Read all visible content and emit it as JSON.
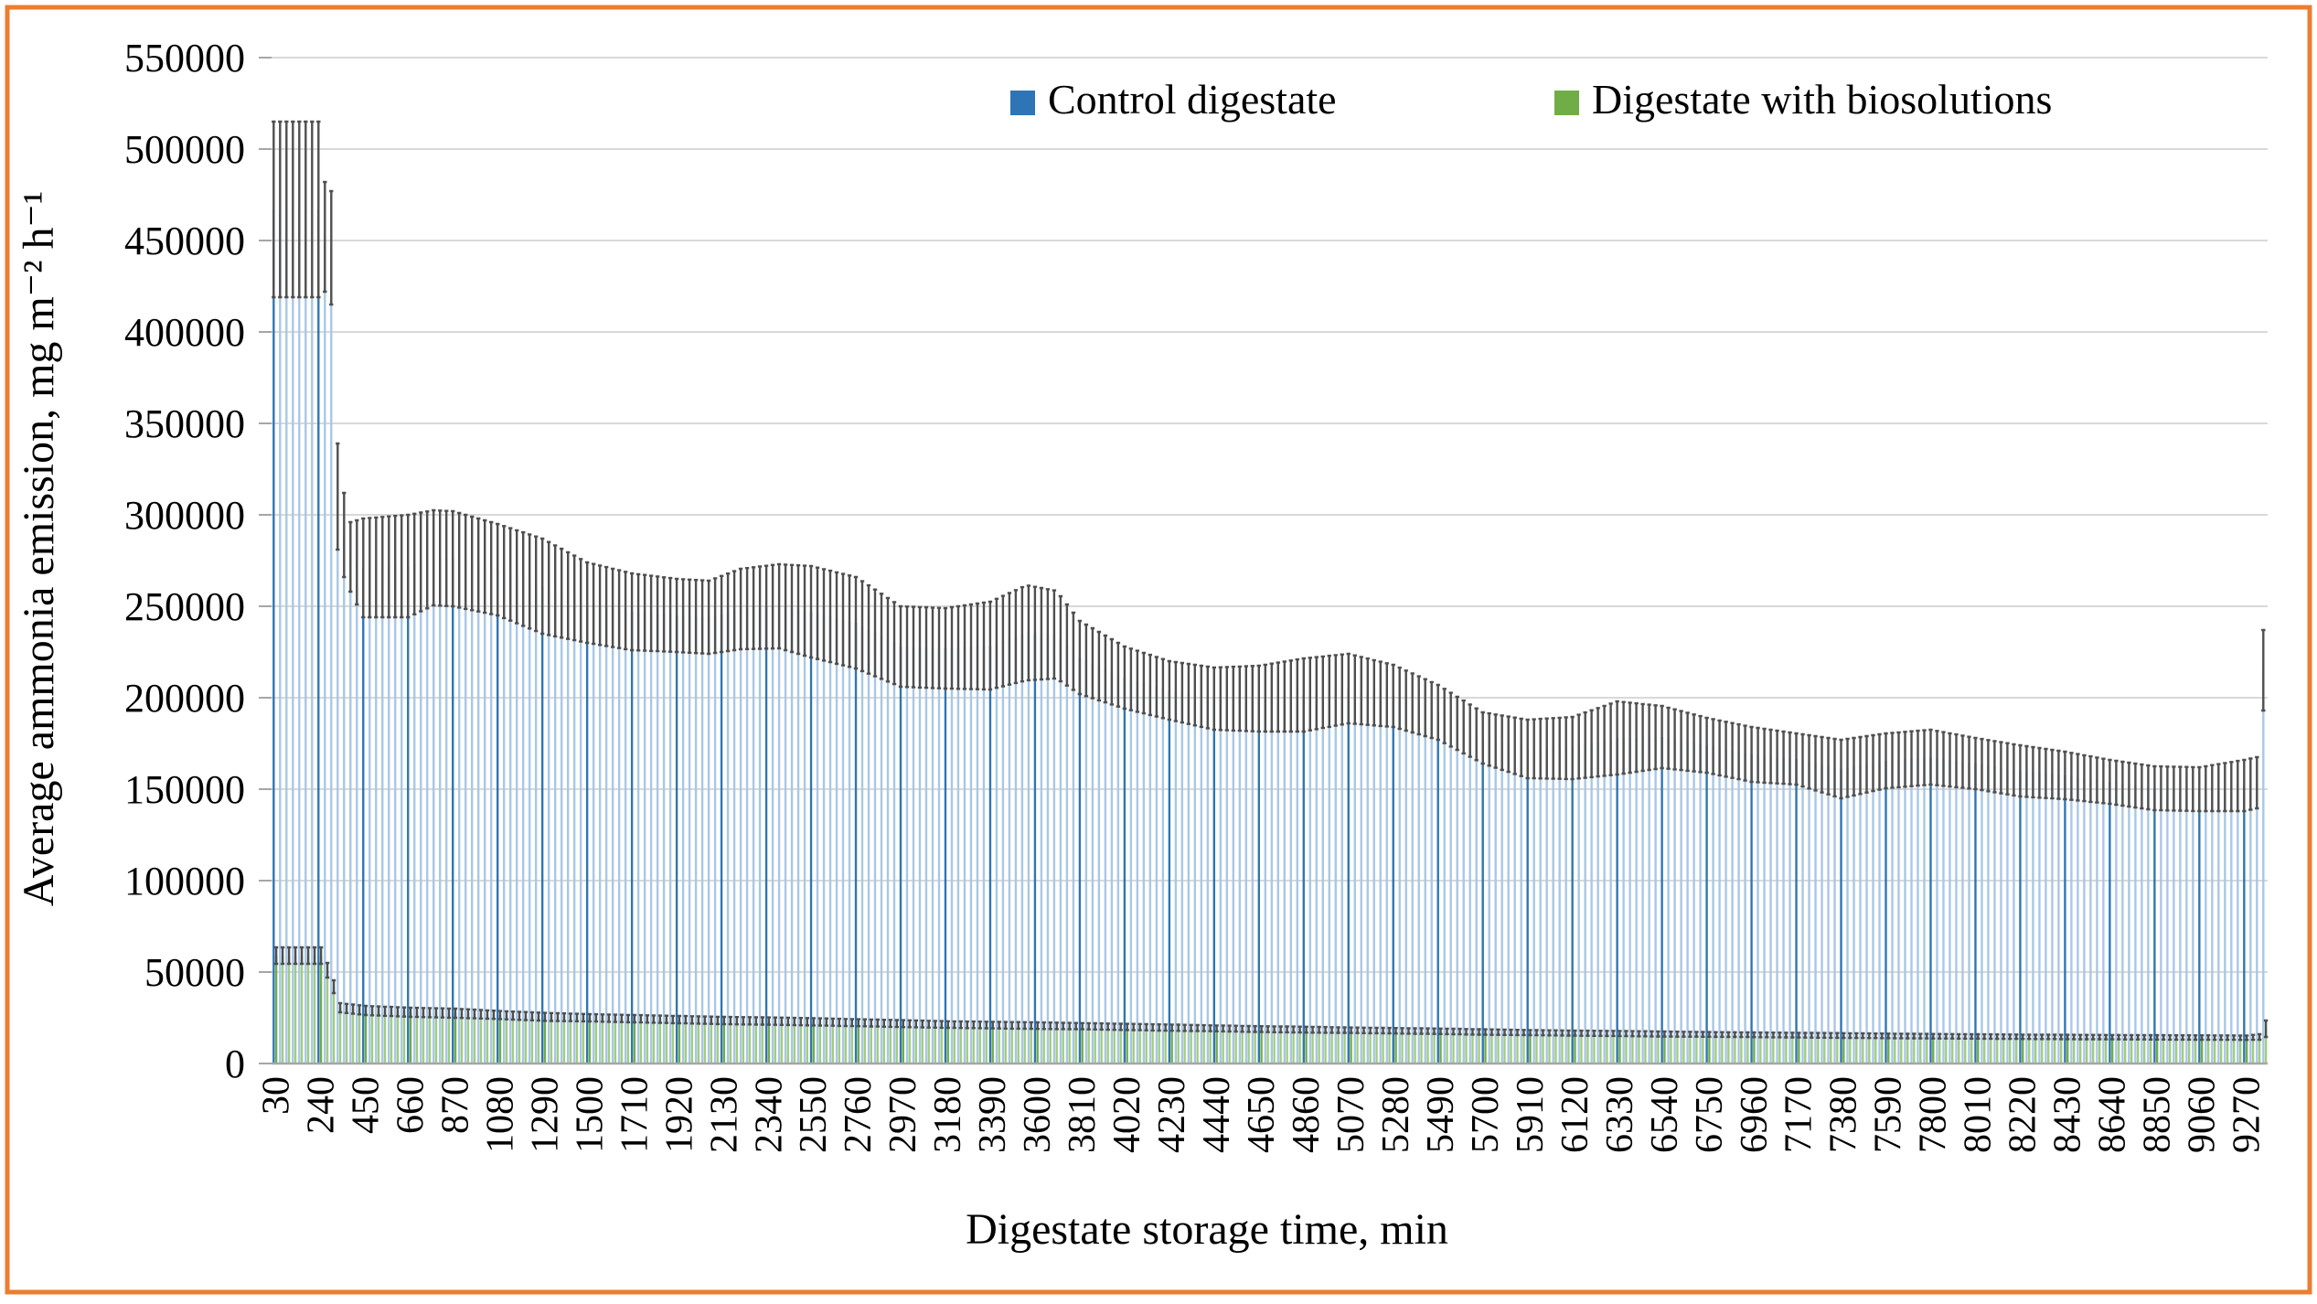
{
  "frame": {
    "border_color": "#ED7D31",
    "background": "#FFFFFF"
  },
  "chart_data": {
    "type": "bar",
    "title": "",
    "xlabel": "Digestate storage time, min",
    "ylabel": "Average ammonia emission, mg m⁻² h⁻¹",
    "legend": [
      {
        "label": "Control digestate",
        "color": "#2E75B6"
      },
      {
        "label": "Digestate with biosolutions",
        "color": "#70AD47"
      }
    ],
    "y_axis": {
      "min": 0,
      "max": 550000,
      "step": 50000,
      "tick_labels": [
        "0",
        "50000",
        "100000",
        "150000",
        "200000",
        "250000",
        "300000",
        "350000",
        "400000",
        "450000",
        "500000",
        "550000"
      ]
    },
    "x_axis": {
      "tick_labels": [
        "30",
        "240",
        "450",
        "660",
        "870",
        "1080",
        "1290",
        "1500",
        "1710",
        "1920",
        "2130",
        "2340",
        "2550",
        "2760",
        "2970",
        "3180",
        "3390",
        "3600",
        "3810",
        "4020",
        "4230",
        "4440",
        "4650",
        "4860",
        "5070",
        "5280",
        "5490",
        "5700",
        "5910",
        "6120",
        "6330",
        "6540",
        "6750",
        "6960",
        "7170",
        "7380",
        "7590",
        "7800",
        "8010",
        "8220",
        "8430",
        "8640",
        "8850",
        "9060",
        "9270"
      ],
      "label_every_n_bars": 7,
      "bar_interval_min": 30,
      "first_bar_min": 30,
      "last_bar_min": 9360
    },
    "gridline_color": "#D9D9D9",
    "axis_line_color": "#A6A6A6",
    "error_bar_color": "#4F4F4F",
    "series": [
      {
        "name": "Control digestate",
        "color_light": "#A8C7E6",
        "color_dark": "#2E75B6",
        "anchors": [
          [
            30,
            467000,
            48000
          ],
          [
            240,
            467000,
            48000
          ],
          [
            270,
            452000,
            30000
          ],
          [
            300,
            446000,
            31000
          ],
          [
            330,
            310000,
            29000
          ],
          [
            360,
            289000,
            23000
          ],
          [
            390,
            277000,
            19000
          ],
          [
            450,
            271000,
            27000
          ],
          [
            660,
            272000,
            28000
          ],
          [
            780,
            276500,
            26000
          ],
          [
            870,
            276000,
            26000
          ],
          [
            1080,
            270000,
            25000
          ],
          [
            1290,
            261000,
            26000
          ],
          [
            1500,
            252000,
            22000
          ],
          [
            1710,
            247000,
            21000
          ],
          [
            1920,
            245000,
            20000
          ],
          [
            2070,
            244000,
            20000
          ],
          [
            2220,
            248500,
            22000
          ],
          [
            2400,
            250000,
            23000
          ],
          [
            2550,
            247000,
            25000
          ],
          [
            2760,
            241000,
            25000
          ],
          [
            2970,
            228000,
            22000
          ],
          [
            3180,
            227000,
            22000
          ],
          [
            3390,
            228500,
            24000
          ],
          [
            3560,
            235500,
            26000
          ],
          [
            3700,
            234500,
            24000
          ],
          [
            3810,
            222000,
            20000
          ],
          [
            4020,
            211000,
            17000
          ],
          [
            4230,
            204000,
            16000
          ],
          [
            4440,
            199500,
            17000
          ],
          [
            4650,
            199500,
            18000
          ],
          [
            4860,
            201500,
            20000
          ],
          [
            5070,
            205000,
            19000
          ],
          [
            5280,
            201000,
            17000
          ],
          [
            5490,
            192000,
            15000
          ],
          [
            5700,
            178000,
            14000
          ],
          [
            5910,
            172000,
            16000
          ],
          [
            6120,
            172500,
            17000
          ],
          [
            6330,
            178000,
            20000
          ],
          [
            6540,
            178500,
            17000
          ],
          [
            6750,
            174000,
            15000
          ],
          [
            6960,
            169000,
            15000
          ],
          [
            7170,
            166500,
            14000
          ],
          [
            7380,
            161000,
            16000
          ],
          [
            7590,
            165500,
            15000
          ],
          [
            7800,
            167500,
            15000
          ],
          [
            8010,
            164000,
            14000
          ],
          [
            8220,
            160000,
            14000
          ],
          [
            8430,
            157500,
            13000
          ],
          [
            8640,
            154000,
            12000
          ],
          [
            8850,
            150500,
            12000
          ],
          [
            9060,
            150000,
            12000
          ],
          [
            9270,
            152000,
            14000
          ],
          [
            9330,
            153500,
            14000
          ],
          [
            9360,
            215000,
            22000
          ]
        ]
      },
      {
        "name": "Digestate with biosolutions",
        "color_light": "#A1CD7E",
        "color_dark": "#70AD47",
        "anchors": [
          [
            30,
            59000,
            4500
          ],
          [
            240,
            59000,
            4500
          ],
          [
            270,
            51000,
            4000
          ],
          [
            300,
            42000,
            3500
          ],
          [
            330,
            30500,
            2500
          ],
          [
            450,
            29000,
            2500
          ],
          [
            660,
            28000,
            2500
          ],
          [
            870,
            27500,
            2500
          ],
          [
            1080,
            26500,
            2200
          ],
          [
            1290,
            25500,
            2200
          ],
          [
            1500,
            25000,
            2000
          ],
          [
            1710,
            24500,
            2000
          ],
          [
            1920,
            24000,
            2000
          ],
          [
            2130,
            23500,
            2000
          ],
          [
            2340,
            23200,
            2000
          ],
          [
            2550,
            22800,
            2000
          ],
          [
            2760,
            22300,
            1900
          ],
          [
            2970,
            21800,
            1900
          ],
          [
            3180,
            21300,
            1800
          ],
          [
            3390,
            21000,
            1800
          ],
          [
            3600,
            20700,
            1800
          ],
          [
            3810,
            20400,
            1700
          ],
          [
            4020,
            20000,
            1700
          ],
          [
            4230,
            19600,
            1700
          ],
          [
            4440,
            19200,
            1600
          ],
          [
            4650,
            18800,
            1600
          ],
          [
            4860,
            18500,
            1600
          ],
          [
            5070,
            18200,
            1500
          ],
          [
            5280,
            17900,
            1500
          ],
          [
            5490,
            17600,
            1500
          ],
          [
            5700,
            17200,
            1500
          ],
          [
            5910,
            16900,
            1400
          ],
          [
            6120,
            16600,
            1400
          ],
          [
            6330,
            16400,
            1400
          ],
          [
            6540,
            16100,
            1400
          ],
          [
            6750,
            15900,
            1300
          ],
          [
            6960,
            15700,
            1300
          ],
          [
            7170,
            15500,
            1300
          ],
          [
            7380,
            15300,
            1300
          ],
          [
            7590,
            15100,
            1250
          ],
          [
            7800,
            14900,
            1250
          ],
          [
            8010,
            14800,
            1200
          ],
          [
            8220,
            14600,
            1200
          ],
          [
            8430,
            14500,
            1200
          ],
          [
            8640,
            14400,
            1200
          ],
          [
            8850,
            14300,
            1200
          ],
          [
            9060,
            14200,
            1200
          ],
          [
            9270,
            14100,
            1200
          ],
          [
            9330,
            14500,
            1500
          ],
          [
            9360,
            19000,
            4500
          ]
        ]
      }
    ]
  }
}
